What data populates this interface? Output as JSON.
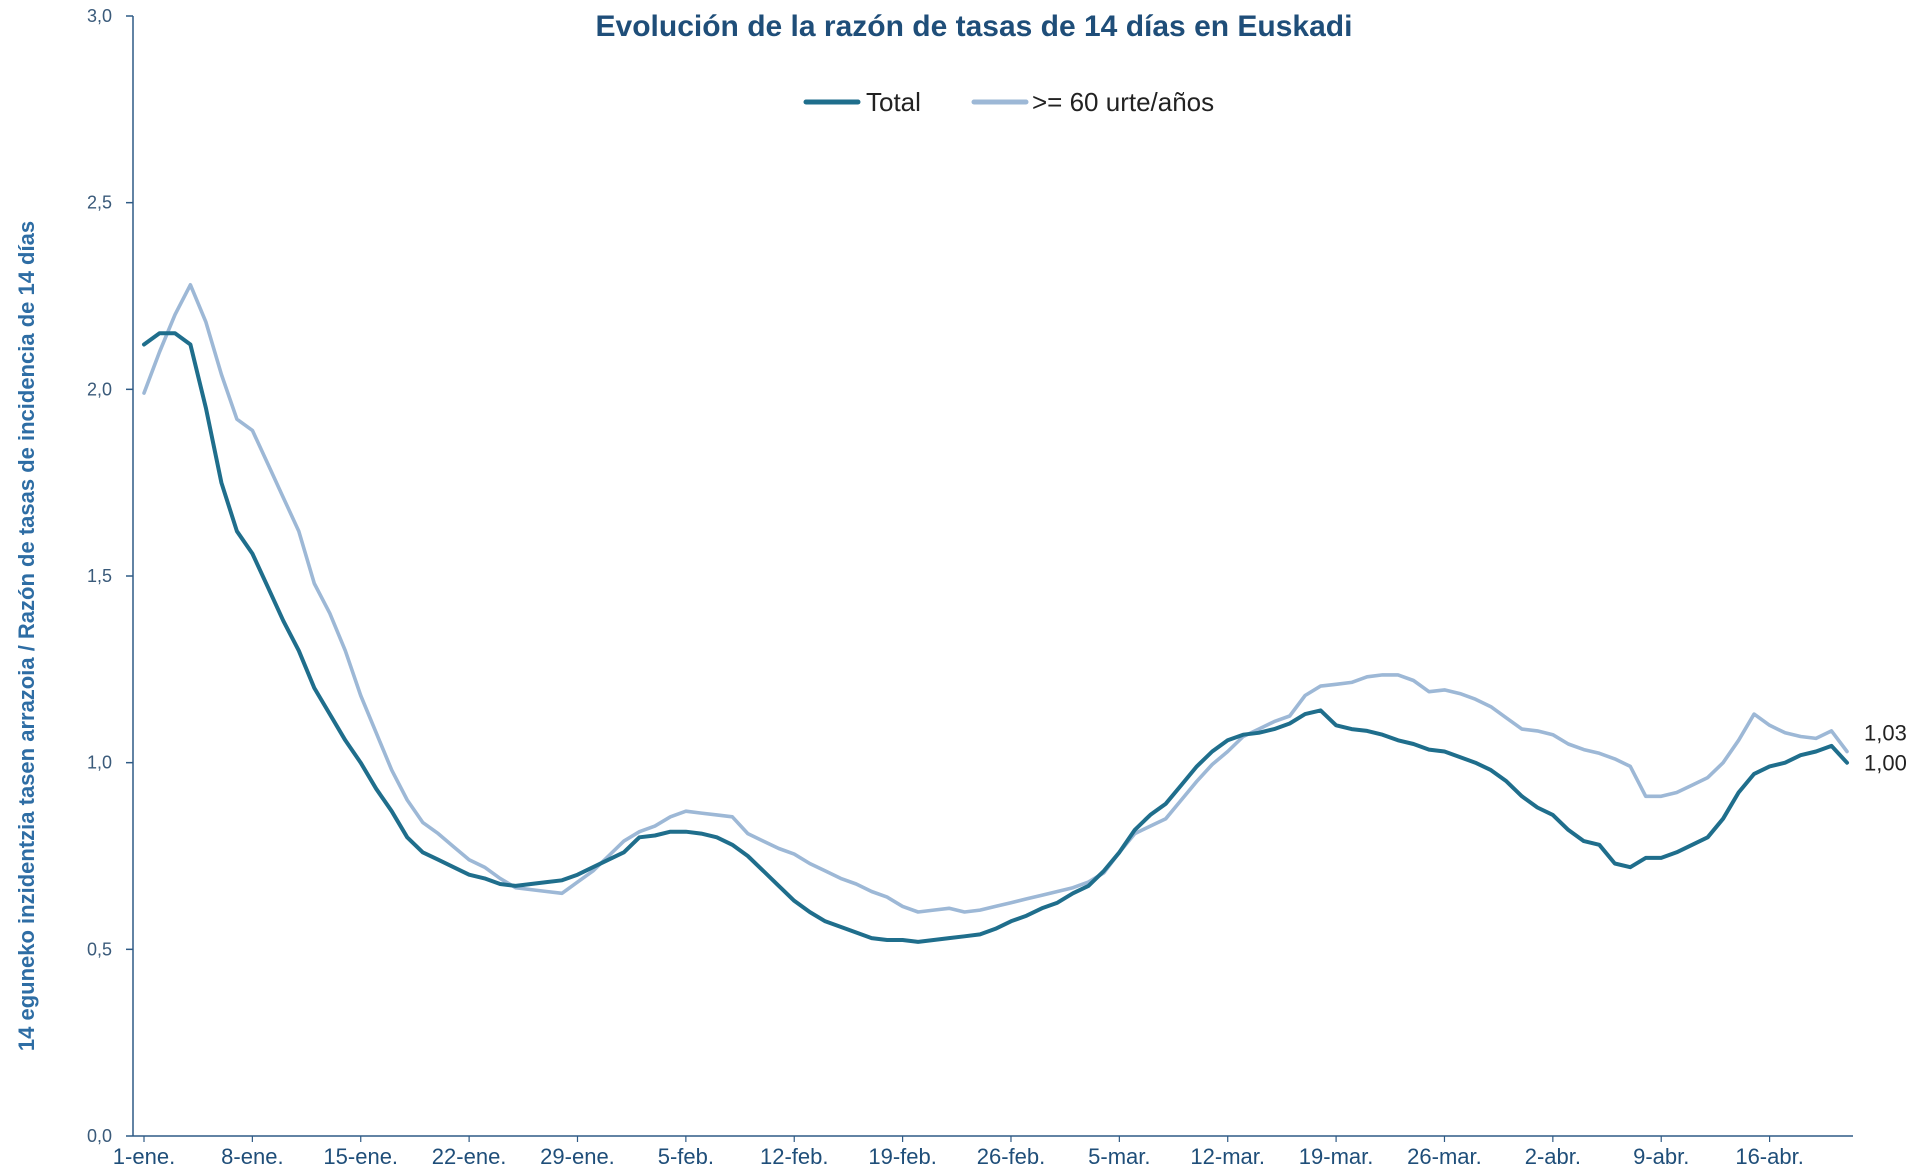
{
  "chart_data": {
    "type": "line",
    "title": "",
    "subtitle": "Evolución de la razón de tasas de 14 días en Euskadi",
    "ylabel": "14 eguneko inzidentzia  tasen arrazoia  / Razón de tasas de  incidencia de 14 días",
    "xlabel": "",
    "ylim": [
      0,
      3
    ],
    "yticks": [
      "0,0",
      "0,5",
      "1,0",
      "1,5",
      "2,0",
      "2,5",
      "3,0"
    ],
    "ytick_values": [
      0,
      0.5,
      1,
      1.5,
      2,
      2.5,
      3
    ],
    "xticks": [
      "1-ene.",
      "8-ene.",
      "15-ene.",
      "22-ene.",
      "29-ene.",
      "5-feb.",
      "12-feb.",
      "19-feb.",
      "26-feb.",
      "5-mar.",
      "12-mar.",
      "19-mar.",
      "26-mar.",
      "2-abr.",
      "9-abr.",
      "16-abr."
    ],
    "xtick_days": [
      0,
      7,
      14,
      21,
      28,
      35,
      42,
      49,
      56,
      63,
      70,
      77,
      84,
      91,
      98,
      105
    ],
    "x_start": "1-ene.",
    "grid": false,
    "legend_position": "top-center",
    "series": [
      {
        "name": "Total",
        "color": "#1f6e8c",
        "end_label": "1,00",
        "points": [
          [
            0,
            2.12
          ],
          [
            1,
            2.15
          ],
          [
            2,
            2.15
          ],
          [
            3,
            2.12
          ],
          [
            4,
            1.95
          ],
          [
            5,
            1.75
          ],
          [
            6,
            1.62
          ],
          [
            7,
            1.56
          ],
          [
            8,
            1.47
          ],
          [
            9,
            1.38
          ],
          [
            10,
            1.3
          ],
          [
            11,
            1.2
          ],
          [
            12,
            1.13
          ],
          [
            13,
            1.06
          ],
          [
            14,
            1.0
          ],
          [
            15,
            0.93
          ],
          [
            16,
            0.87
          ],
          [
            17,
            0.8
          ],
          [
            18,
            0.76
          ],
          [
            19,
            0.74
          ],
          [
            20,
            0.72
          ],
          [
            21,
            0.7
          ],
          [
            22,
            0.69
          ],
          [
            23,
            0.675
          ],
          [
            24,
            0.67
          ],
          [
            25,
            0.675
          ],
          [
            26,
            0.68
          ],
          [
            27,
            0.685
          ],
          [
            28,
            0.7
          ],
          [
            29,
            0.72
          ],
          [
            30,
            0.74
          ],
          [
            31,
            0.76
          ],
          [
            32,
            0.8
          ],
          [
            33,
            0.805
          ],
          [
            34,
            0.815
          ],
          [
            35,
            0.815
          ],
          [
            36,
            0.81
          ],
          [
            37,
            0.8
          ],
          [
            38,
            0.78
          ],
          [
            39,
            0.75
          ],
          [
            40,
            0.71
          ],
          [
            41,
            0.67
          ],
          [
            42,
            0.63
          ],
          [
            43,
            0.6
          ],
          [
            44,
            0.575
          ],
          [
            45,
            0.56
          ],
          [
            46,
            0.545
          ],
          [
            47,
            0.53
          ],
          [
            48,
            0.525
          ],
          [
            49,
            0.525
          ],
          [
            50,
            0.52
          ],
          [
            51,
            0.525
          ],
          [
            52,
            0.53
          ],
          [
            53,
            0.535
          ],
          [
            54,
            0.54
          ],
          [
            55,
            0.555
          ],
          [
            56,
            0.575
          ],
          [
            57,
            0.59
          ],
          [
            58,
            0.61
          ],
          [
            59,
            0.625
          ],
          [
            60,
            0.65
          ],
          [
            61,
            0.67
          ],
          [
            62,
            0.71
          ],
          [
            63,
            0.76
          ],
          [
            64,
            0.82
          ],
          [
            65,
            0.86
          ],
          [
            66,
            0.89
          ],
          [
            67,
            0.94
          ],
          [
            68,
            0.99
          ],
          [
            69,
            1.03
          ],
          [
            70,
            1.06
          ],
          [
            71,
            1.075
          ],
          [
            72,
            1.08
          ],
          [
            73,
            1.09
          ],
          [
            74,
            1.105
          ],
          [
            75,
            1.13
          ],
          [
            76,
            1.14
          ],
          [
            77,
            1.1
          ],
          [
            78,
            1.09
          ],
          [
            79,
            1.085
          ],
          [
            80,
            1.075
          ],
          [
            81,
            1.06
          ],
          [
            82,
            1.05
          ],
          [
            83,
            1.035
          ],
          [
            84,
            1.03
          ],
          [
            85,
            1.015
          ],
          [
            86,
            1.0
          ],
          [
            87,
            0.98
          ],
          [
            88,
            0.95
          ],
          [
            89,
            0.91
          ],
          [
            90,
            0.88
          ],
          [
            91,
            0.86
          ],
          [
            92,
            0.82
          ],
          [
            93,
            0.79
          ],
          [
            94,
            0.78
          ],
          [
            95,
            0.73
          ],
          [
            96,
            0.72
          ],
          [
            97,
            0.745
          ],
          [
            98,
            0.745
          ],
          [
            99,
            0.76
          ],
          [
            100,
            0.78
          ],
          [
            101,
            0.8
          ],
          [
            102,
            0.85
          ],
          [
            103,
            0.92
          ],
          [
            104,
            0.97
          ],
          [
            105,
            0.99
          ],
          [
            106,
            1.0
          ],
          [
            107,
            1.02
          ],
          [
            108,
            1.03
          ],
          [
            109,
            1.045
          ],
          [
            110,
            1.0
          ]
        ]
      },
      {
        "name": ">= 60 urte/años",
        "color": "#9db8d6",
        "end_label": "1,03",
        "points": [
          [
            0,
            1.99
          ],
          [
            1,
            2.1
          ],
          [
            2,
            2.2
          ],
          [
            3,
            2.28
          ],
          [
            4,
            2.18
          ],
          [
            5,
            2.04
          ],
          [
            6,
            1.92
          ],
          [
            7,
            1.89
          ],
          [
            8,
            1.8
          ],
          [
            9,
            1.71
          ],
          [
            10,
            1.62
          ],
          [
            11,
            1.48
          ],
          [
            12,
            1.4
          ],
          [
            13,
            1.3
          ],
          [
            14,
            1.18
          ],
          [
            15,
            1.08
          ],
          [
            16,
            0.98
          ],
          [
            17,
            0.9
          ],
          [
            18,
            0.84
          ],
          [
            19,
            0.81
          ],
          [
            20,
            0.775
          ],
          [
            21,
            0.74
          ],
          [
            22,
            0.72
          ],
          [
            23,
            0.69
          ],
          [
            24,
            0.665
          ],
          [
            25,
            0.66
          ],
          [
            26,
            0.655
          ],
          [
            27,
            0.65
          ],
          [
            28,
            0.68
          ],
          [
            29,
            0.71
          ],
          [
            30,
            0.75
          ],
          [
            31,
            0.79
          ],
          [
            32,
            0.815
          ],
          [
            33,
            0.83
          ],
          [
            34,
            0.855
          ],
          [
            35,
            0.87
          ],
          [
            36,
            0.865
          ],
          [
            37,
            0.86
          ],
          [
            38,
            0.855
          ],
          [
            39,
            0.81
          ],
          [
            40,
            0.79
          ],
          [
            41,
            0.77
          ],
          [
            42,
            0.755
          ],
          [
            43,
            0.73
          ],
          [
            44,
            0.71
          ],
          [
            45,
            0.69
          ],
          [
            46,
            0.675
          ],
          [
            47,
            0.655
          ],
          [
            48,
            0.64
          ],
          [
            49,
            0.615
          ],
          [
            50,
            0.6
          ],
          [
            51,
            0.605
          ],
          [
            52,
            0.61
          ],
          [
            53,
            0.6
          ],
          [
            54,
            0.605
          ],
          [
            55,
            0.615
          ],
          [
            56,
            0.625
          ],
          [
            57,
            0.635
          ],
          [
            58,
            0.645
          ],
          [
            59,
            0.655
          ],
          [
            60,
            0.665
          ],
          [
            61,
            0.68
          ],
          [
            62,
            0.705
          ],
          [
            63,
            0.76
          ],
          [
            64,
            0.81
          ],
          [
            65,
            0.83
          ],
          [
            66,
            0.85
          ],
          [
            67,
            0.9
          ],
          [
            68,
            0.95
          ],
          [
            69,
            0.995
          ],
          [
            70,
            1.03
          ],
          [
            71,
            1.07
          ],
          [
            72,
            1.09
          ],
          [
            73,
            1.11
          ],
          [
            74,
            1.125
          ],
          [
            75,
            1.18
          ],
          [
            76,
            1.205
          ],
          [
            77,
            1.21
          ],
          [
            78,
            1.215
          ],
          [
            79,
            1.23
          ],
          [
            80,
            1.235
          ],
          [
            81,
            1.235
          ],
          [
            82,
            1.22
          ],
          [
            83,
            1.19
          ],
          [
            84,
            1.195
          ],
          [
            85,
            1.185
          ],
          [
            86,
            1.17
          ],
          [
            87,
            1.15
          ],
          [
            88,
            1.12
          ],
          [
            89,
            1.09
          ],
          [
            90,
            1.085
          ],
          [
            91,
            1.075
          ],
          [
            92,
            1.05
          ],
          [
            93,
            1.035
          ],
          [
            94,
            1.025
          ],
          [
            95,
            1.01
          ],
          [
            96,
            0.99
          ],
          [
            97,
            0.91
          ],
          [
            98,
            0.91
          ],
          [
            99,
            0.92
          ],
          [
            100,
            0.94
          ],
          [
            101,
            0.96
          ],
          [
            102,
            1.0
          ],
          [
            103,
            1.06
          ],
          [
            104,
            1.13
          ],
          [
            105,
            1.1
          ],
          [
            106,
            1.08
          ],
          [
            107,
            1.07
          ],
          [
            108,
            1.065
          ],
          [
            109,
            1.085
          ],
          [
            110,
            1.03
          ]
        ]
      }
    ]
  }
}
